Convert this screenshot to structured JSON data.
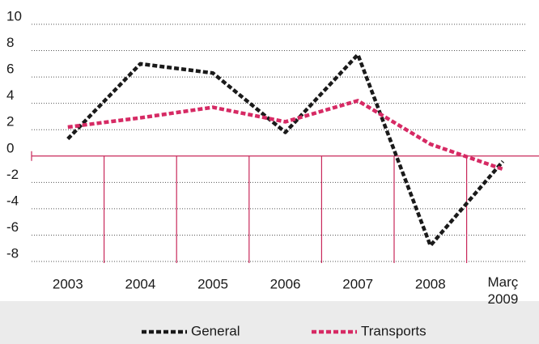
{
  "chart_data": {
    "type": "line",
    "categories": [
      "2003",
      "2004",
      "2005",
      "2006",
      "2007",
      "2008",
      "Març\n2009"
    ],
    "series": [
      {
        "name": "General",
        "color": "#1a1a1a",
        "values": [
          1.3,
          7.0,
          6.3,
          1.8,
          7.7,
          -6.8,
          -0.4
        ]
      },
      {
        "name": "Transports",
        "color": "#d62a64",
        "values": [
          2.2,
          2.9,
          3.7,
          2.6,
          4.2,
          0.9,
          -1.0
        ]
      }
    ],
    "ylim": [
      -8,
      10
    ],
    "yticks": [
      -8,
      -6,
      -4,
      -2,
      0,
      2,
      4,
      6,
      8,
      10
    ],
    "grid": true,
    "legend": "bottom"
  }
}
